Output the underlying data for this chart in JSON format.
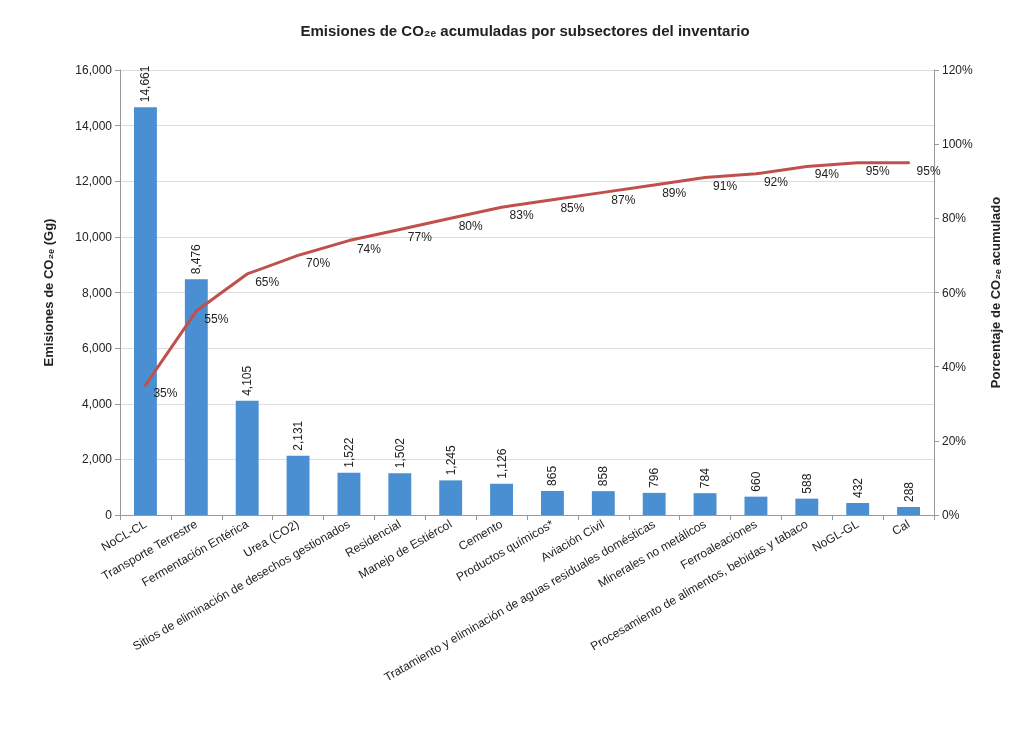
{
  "chart_data": {
    "type": "bar",
    "title": "Emisiones de CO₂ₑ acumuladas por subsectores del inventario",
    "ylabel": "Emisiones de CO₂ₑ (Gg)",
    "y2label": "Porcentaje de CO₂ₑ acumulado",
    "categories": [
      "NoCL-CL",
      "Transporte Terrestre",
      "Fermentación Entérica",
      "Urea (CO2)",
      "Sitios de eliminación de desechos gestionados",
      "Residencial",
      "Manejo de Estiércol",
      "Cemento",
      "Productos químicos*",
      "Aviación Civil",
      "Tratamiento y eliminación de aguas residuales domésticas",
      "Minerales no metálicos",
      "Ferroaleaciones",
      "Procesamiento de alimentos, bebidas y tabaco",
      "NoGL-GL",
      "Cal"
    ],
    "series": [
      {
        "color": "#4a8fd2",
        "values": [
          14661,
          8476,
          4105,
          2131,
          1522,
          1502,
          1245,
          1126,
          865,
          858,
          796,
          784,
          660,
          588,
          432,
          288
        ],
        "value_labels": [
          "14,661",
          "8,476",
          "4,105",
          "2,131",
          "1,522",
          "1,502",
          "1,245",
          "1,126",
          "865",
          "858",
          "796",
          "784",
          "660",
          "588",
          "432",
          "288"
        ]
      },
      {
        "type": "line",
        "axis": "y2",
        "color": "#c0504d",
        "values": [
          35,
          55,
          65,
          70,
          74,
          77,
          80,
          83,
          85,
          87,
          89,
          91,
          92,
          94,
          95,
          95
        ],
        "value_labels": [
          "35%",
          "55%",
          "65%",
          "70%",
          "74%",
          "77%",
          "80%",
          "83%",
          "85%",
          "87%",
          "89%",
          "91%",
          "92%",
          "94%",
          "95%",
          "95%"
        ]
      }
    ],
    "ylim": [
      0,
      16000
    ],
    "yticks": [
      0,
      {
        "value": 2000,
        "label": "2,000"
      },
      {
        "value": 4000,
        "label": "4,000"
      },
      {
        "value": 6000,
        "label": "6,000"
      },
      {
        "value": 8000,
        "label": "8,000"
      },
      {
        "value": 10000,
        "label": "10,000"
      },
      {
        "value": 12000,
        "label": "12,000"
      },
      {
        "value": 14000,
        "label": "14,000"
      },
      {
        "value": 16000,
        "label": "16,000"
      }
    ],
    "y2lim": [
      0,
      120
    ],
    "y2ticks": [
      {
        "value": 0,
        "label": "0%"
      },
      {
        "value": 20,
        "label": "20%"
      },
      {
        "value": 40,
        "label": "40%"
      },
      {
        "value": 60,
        "label": "60%"
      },
      {
        "value": 80,
        "label": "80%"
      },
      {
        "value": 100,
        "label": "100%"
      },
      {
        "value": 120,
        "label": "120%"
      }
    ],
    "grid": "y",
    "marker": "none",
    "line_style": "solid"
  }
}
